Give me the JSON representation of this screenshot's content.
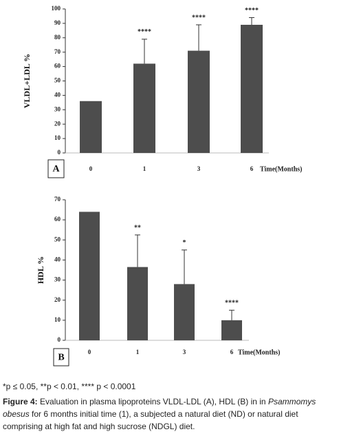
{
  "chart_data": [
    {
      "type": "bar",
      "panel": "A",
      "ylabel": "VLDL+LDL %",
      "xlabel": "Time(Months)",
      "categories": [
        "0",
        "1",
        "3",
        "6"
      ],
      "values": [
        36,
        62,
        71,
        89
      ],
      "errors": [
        null,
        17,
        18,
        5
      ],
      "annotations": [
        null,
        "****",
        "****",
        "****"
      ],
      "color": "#4d4d4d",
      "ylim": [
        0,
        100
      ],
      "yticks": [
        0,
        10,
        20,
        30,
        40,
        50,
        60,
        70,
        80,
        90,
        100
      ]
    },
    {
      "type": "bar",
      "panel": "B",
      "ylabel": "HDL %",
      "xlabel": "Time(Months)",
      "categories": [
        "0",
        "1",
        "3",
        "6"
      ],
      "values": [
        64,
        36.5,
        28,
        10
      ],
      "errors": [
        null,
        16,
        17,
        5
      ],
      "annotations": [
        null,
        "**",
        "*",
        "****"
      ],
      "color": "#4d4d4d",
      "ylim": [
        0,
        70
      ],
      "yticks": [
        0,
        10,
        20,
        30,
        40,
        50,
        60,
        70
      ]
    }
  ],
  "caption": {
    "significance": "*p ≤ 0.05, **p < 0.01, **** p < 0.0001",
    "label": "Figure 4:",
    "text_before": "Evaluation in plasma lipoproteins VLDL-LDL (A), HDL (B) in in",
    "species": "Psammomys obesus",
    "text_after": "for 6 months initial time (1), a subjected a natural diet (ND) or natural diet comprising at high fat and high sucrose (NDGL) diet."
  }
}
